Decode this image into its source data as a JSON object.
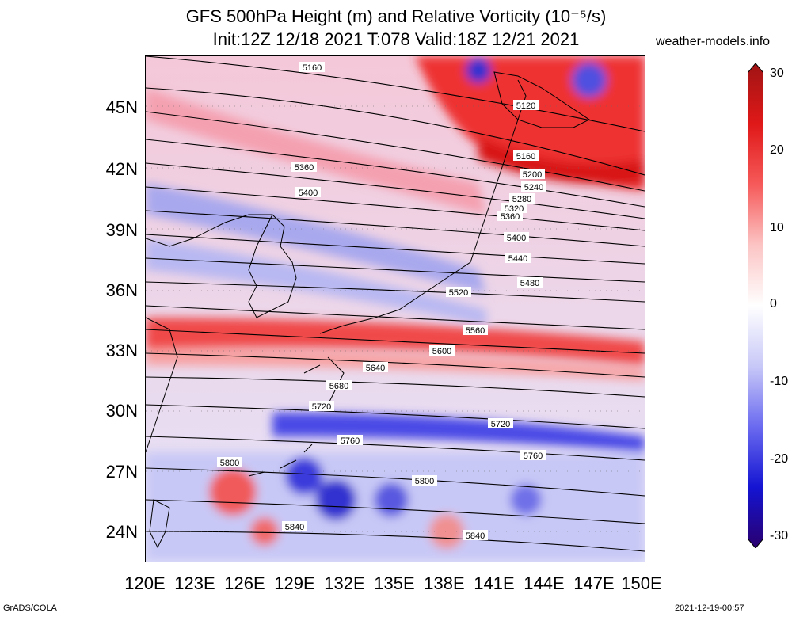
{
  "title_line1": "GFS 500hPa Height (m) and Relative Vorticity (10⁻⁵/s)",
  "title_line2": "Init:12Z 12/18 2021 T:078 Valid:18Z 12/21 2021",
  "source": "weather-models.info",
  "lat_labels": [
    "45N",
    "42N",
    "39N",
    "36N",
    "33N",
    "30N",
    "27N",
    "24N"
  ],
  "lon_labels": [
    "120E",
    "123E",
    "126E",
    "129E",
    "132E",
    "135E",
    "138E",
    "141E",
    "144E",
    "147E",
    "150E"
  ],
  "colorbar": {
    "ticks": [
      "30",
      "20",
      "10",
      "0",
      "-10",
      "-20",
      "-30"
    ],
    "colors": [
      "#a01414",
      "#e01818",
      "#f65a5a",
      "#fcc4c4",
      "#ffffff",
      "#c8c8f8",
      "#6a6af0",
      "#1414d2",
      "#2a006e"
    ]
  },
  "contour_labels": [
    "5160",
    "5120",
    "5160",
    "5200",
    "5240",
    "5280",
    "5320",
    "5360",
    "5360",
    "5400",
    "5400",
    "5440",
    "5480",
    "5520",
    "5560",
    "5600",
    "5640",
    "5680",
    "5720",
    "5720",
    "5760",
    "5760",
    "5800",
    "5800",
    "5840",
    "5840"
  ],
  "footer_left": "GrADS/COLA",
  "footer_right": "2021-12-19-00:57"
}
